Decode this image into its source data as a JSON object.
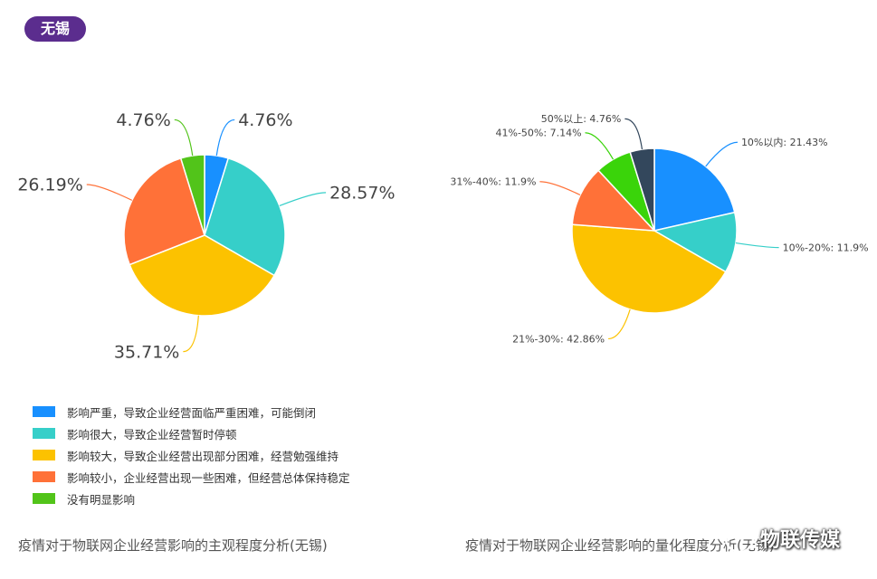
{
  "region_tag": "无锡",
  "colors": {
    "tag_bg": "#5b2d8e",
    "blue": "#1890ff",
    "teal": "#36cfc9",
    "yellow": "#fcc200",
    "orange": "#ff7138",
    "green": "#52c41a",
    "green2": "#3ad40a",
    "slate": "#33475c"
  },
  "chart_data": [
    {
      "type": "pie",
      "title": "",
      "slices": [
        {
          "value": 4.76,
          "label": "4.76%",
          "color": "#1890ff"
        },
        {
          "value": 28.57,
          "label": "28.57%",
          "color": "#36cfc9"
        },
        {
          "value": 35.71,
          "label": "35.71%",
          "color": "#fcc200"
        },
        {
          "value": 26.19,
          "label": "26.19%",
          "color": "#ff7138"
        },
        {
          "value": 4.76,
          "label": "4.76%",
          "color": "#52c41a"
        }
      ],
      "legend": [
        {
          "label": "影响严重，导致企业经营面临严重困难，可能倒闭",
          "color": "#1890ff"
        },
        {
          "label": "影响很大，导致企业经营暂时停顿",
          "color": "#36cfc9"
        },
        {
          "label": "影响较大，导致企业经营出现部分困难，经营勉强维持",
          "color": "#fcc200"
        },
        {
          "label": "影响较小，企业经营出现一些困难，但经营总体保持稳定",
          "color": "#ff7138"
        },
        {
          "label": "没有明显影响",
          "color": "#52c41a"
        }
      ],
      "legend_position": "bottom-left",
      "caption": "疫情对于物联网企业经营影响的主观程度分析(无锡)"
    },
    {
      "type": "pie",
      "title": "",
      "slices": [
        {
          "value": 21.43,
          "label": "10%以内: 21.43%",
          "color": "#1890ff"
        },
        {
          "value": 11.9,
          "label": "10%-20%: 11.9%",
          "color": "#36cfc9"
        },
        {
          "value": 42.86,
          "label": "21%-30%: 42.86%",
          "color": "#fcc200"
        },
        {
          "value": 11.9,
          "label": "31%-40%: 11.9%",
          "color": "#ff7138"
        },
        {
          "value": 7.14,
          "label": "41%-50%: 7.14%",
          "color": "#3ad40a"
        },
        {
          "value": 4.76,
          "label": "50%以上: 4.76%",
          "color": "#33475c"
        }
      ],
      "caption": "疫情对于物联网企业经营影响的量化程度分析(无锡)"
    }
  ],
  "watermark": "物联传媒"
}
